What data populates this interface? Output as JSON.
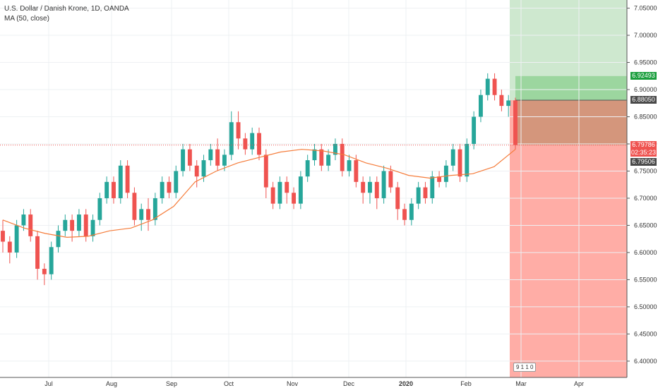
{
  "legend": {
    "symbol": "U.S. Dollar / Danish Krone, 1D, OANDA",
    "indicator": "MA (50, close)"
  },
  "price_tags": {
    "target": "6.92493",
    "entry": "6.88050",
    "last": "6.79786",
    "countdown": "02:35:23",
    "ma": "6.79506"
  },
  "badge": {
    "text": "9 1 1 0"
  },
  "colors": {
    "up": "#26a69a",
    "down": "#ef5350",
    "ma": "#f57c3a",
    "profit_zone": "#a5d6a7",
    "loss_zone": "#ff8a80",
    "target_tag": "#1b9e3e",
    "entry_tag": "#4a4a4a",
    "last_tag": "#ef5350",
    "ma_tag": "#4a4a4a"
  },
  "chart_data": {
    "type": "candlestick",
    "y_ticks": [
      "7.05000",
      "7.00000",
      "6.95000",
      "6.90000",
      "6.85000",
      "6.80000",
      "6.75000",
      "6.70000",
      "6.65000",
      "6.60000",
      "6.55000",
      "6.50000",
      "6.45000",
      "6.40000"
    ],
    "ylim": [
      6.37,
      7.065
    ],
    "x_ticks": [
      "Jul",
      "Aug",
      "Sep",
      "Oct",
      "Nov",
      "Dec",
      "2020",
      "Feb",
      "Mar",
      "Apr"
    ],
    "series": [
      {
        "name": "MA (50, close)",
        "values": [
          6.66,
          6.645,
          6.635,
          6.628,
          6.63,
          6.64,
          6.645,
          6.66,
          6.685,
          6.73,
          6.75,
          6.765,
          6.775,
          6.785,
          6.79,
          6.787,
          6.78,
          6.765,
          6.755,
          6.742,
          6.737,
          6.742,
          6.745,
          6.758,
          6.79
        ]
      }
    ],
    "candles": [
      {
        "o": 6.64,
        "c": 6.62,
        "h": 6.66,
        "l": 6.6
      },
      {
        "o": 6.62,
        "c": 6.6,
        "h": 6.63,
        "l": 6.58
      },
      {
        "o": 6.6,
        "c": 6.65,
        "h": 6.66,
        "l": 6.59
      },
      {
        "o": 6.65,
        "c": 6.67,
        "h": 6.68,
        "l": 6.64
      },
      {
        "o": 6.67,
        "c": 6.63,
        "h": 6.68,
        "l": 6.62
      },
      {
        "o": 6.63,
        "c": 6.57,
        "h": 6.64,
        "l": 6.55
      },
      {
        "o": 6.57,
        "c": 6.56,
        "h": 6.58,
        "l": 6.54
      },
      {
        "o": 6.56,
        "c": 6.61,
        "h": 6.62,
        "l": 6.55
      },
      {
        "o": 6.61,
        "c": 6.64,
        "h": 6.65,
        "l": 6.6
      },
      {
        "o": 6.64,
        "c": 6.66,
        "h": 6.67,
        "l": 6.63
      },
      {
        "o": 6.66,
        "c": 6.64,
        "h": 6.67,
        "l": 6.62
      },
      {
        "o": 6.64,
        "c": 6.67,
        "h": 6.68,
        "l": 6.63
      },
      {
        "o": 6.67,
        "c": 6.63,
        "h": 6.68,
        "l": 6.62
      },
      {
        "o": 6.63,
        "c": 6.66,
        "h": 6.67,
        "l": 6.62
      },
      {
        "o": 6.66,
        "c": 6.7,
        "h": 6.71,
        "l": 6.65
      },
      {
        "o": 6.7,
        "c": 6.73,
        "h": 6.74,
        "l": 6.69
      },
      {
        "o": 6.73,
        "c": 6.7,
        "h": 6.74,
        "l": 6.69
      },
      {
        "o": 6.7,
        "c": 6.76,
        "h": 6.77,
        "l": 6.69
      },
      {
        "o": 6.76,
        "c": 6.71,
        "h": 6.77,
        "l": 6.7
      },
      {
        "o": 6.71,
        "c": 6.66,
        "h": 6.72,
        "l": 6.65
      },
      {
        "o": 6.66,
        "c": 6.68,
        "h": 6.69,
        "l": 6.64
      },
      {
        "o": 6.68,
        "c": 6.66,
        "h": 6.7,
        "l": 6.64
      },
      {
        "o": 6.66,
        "c": 6.7,
        "h": 6.71,
        "l": 6.65
      },
      {
        "o": 6.7,
        "c": 6.73,
        "h": 6.74,
        "l": 6.69
      },
      {
        "o": 6.73,
        "c": 6.71,
        "h": 6.74,
        "l": 6.7
      },
      {
        "o": 6.71,
        "c": 6.75,
        "h": 6.76,
        "l": 6.7
      },
      {
        "o": 6.75,
        "c": 6.79,
        "h": 6.8,
        "l": 6.74
      },
      {
        "o": 6.79,
        "c": 6.76,
        "h": 6.8,
        "l": 6.75
      },
      {
        "o": 6.76,
        "c": 6.74,
        "h": 6.77,
        "l": 6.72
      },
      {
        "o": 6.74,
        "c": 6.77,
        "h": 6.78,
        "l": 6.73
      },
      {
        "o": 6.77,
        "c": 6.79,
        "h": 6.8,
        "l": 6.76
      },
      {
        "o": 6.79,
        "c": 6.76,
        "h": 6.81,
        "l": 6.75
      },
      {
        "o": 6.76,
        "c": 6.78,
        "h": 6.79,
        "l": 6.75
      },
      {
        "o": 6.78,
        "c": 6.84,
        "h": 6.86,
        "l": 6.77
      },
      {
        "o": 6.84,
        "c": 6.81,
        "h": 6.86,
        "l": 6.79
      },
      {
        "o": 6.81,
        "c": 6.79,
        "h": 6.82,
        "l": 6.78
      },
      {
        "o": 6.79,
        "c": 6.82,
        "h": 6.83,
        "l": 6.78
      },
      {
        "o": 6.82,
        "c": 6.78,
        "h": 6.83,
        "l": 6.77
      },
      {
        "o": 6.78,
        "c": 6.72,
        "h": 6.79,
        "l": 6.7
      },
      {
        "o": 6.72,
        "c": 6.69,
        "h": 6.73,
        "l": 6.68
      },
      {
        "o": 6.69,
        "c": 6.73,
        "h": 6.74,
        "l": 6.68
      },
      {
        "o": 6.73,
        "c": 6.71,
        "h": 6.74,
        "l": 6.69
      },
      {
        "o": 6.71,
        "c": 6.69,
        "h": 6.72,
        "l": 6.68
      },
      {
        "o": 6.69,
        "c": 6.74,
        "h": 6.75,
        "l": 6.68
      },
      {
        "o": 6.74,
        "c": 6.77,
        "h": 6.78,
        "l": 6.73
      },
      {
        "o": 6.77,
        "c": 6.79,
        "h": 6.8,
        "l": 6.76
      },
      {
        "o": 6.79,
        "c": 6.76,
        "h": 6.8,
        "l": 6.75
      },
      {
        "o": 6.76,
        "c": 6.78,
        "h": 6.79,
        "l": 6.75
      },
      {
        "o": 6.78,
        "c": 6.8,
        "h": 6.81,
        "l": 6.77
      },
      {
        "o": 6.8,
        "c": 6.75,
        "h": 6.81,
        "l": 6.74
      },
      {
        "o": 6.75,
        "c": 6.77,
        "h": 6.78,
        "l": 6.74
      },
      {
        "o": 6.77,
        "c": 6.73,
        "h": 6.78,
        "l": 6.72
      },
      {
        "o": 6.73,
        "c": 6.71,
        "h": 6.74,
        "l": 6.69
      },
      {
        "o": 6.71,
        "c": 6.73,
        "h": 6.74,
        "l": 6.69
      },
      {
        "o": 6.73,
        "c": 6.7,
        "h": 6.74,
        "l": 6.68
      },
      {
        "o": 6.7,
        "c": 6.75,
        "h": 6.76,
        "l": 6.69
      },
      {
        "o": 6.75,
        "c": 6.72,
        "h": 6.76,
        "l": 6.71
      },
      {
        "o": 6.72,
        "c": 6.68,
        "h": 6.73,
        "l": 6.66
      },
      {
        "o": 6.68,
        "c": 6.66,
        "h": 6.69,
        "l": 6.65
      },
      {
        "o": 6.66,
        "c": 6.69,
        "h": 6.7,
        "l": 6.65
      },
      {
        "o": 6.69,
        "c": 6.72,
        "h": 6.73,
        "l": 6.68
      },
      {
        "o": 6.72,
        "c": 6.7,
        "h": 6.73,
        "l": 6.69
      },
      {
        "o": 6.7,
        "c": 6.74,
        "h": 6.75,
        "l": 6.69
      },
      {
        "o": 6.74,
        "c": 6.73,
        "h": 6.75,
        "l": 6.72
      },
      {
        "o": 6.73,
        "c": 6.76,
        "h": 6.77,
        "l": 6.72
      },
      {
        "o": 6.76,
        "c": 6.79,
        "h": 6.8,
        "l": 6.75
      },
      {
        "o": 6.79,
        "c": 6.74,
        "h": 6.8,
        "l": 6.73
      },
      {
        "o": 6.74,
        "c": 6.8,
        "h": 6.81,
        "l": 6.73
      },
      {
        "o": 6.8,
        "c": 6.85,
        "h": 6.86,
        "l": 6.79
      },
      {
        "o": 6.85,
        "c": 6.89,
        "h": 6.9,
        "l": 6.84
      },
      {
        "o": 6.89,
        "c": 6.92,
        "h": 6.93,
        "l": 6.88
      },
      {
        "o": 6.92,
        "c": 6.89,
        "h": 6.93,
        "l": 6.88
      },
      {
        "o": 6.89,
        "c": 6.87,
        "h": 6.9,
        "l": 6.86
      },
      {
        "o": 6.87,
        "c": 6.88,
        "h": 6.89,
        "l": 6.85
      },
      {
        "o": 6.88,
        "c": 6.798,
        "h": 6.885,
        "l": 6.79
      }
    ]
  }
}
